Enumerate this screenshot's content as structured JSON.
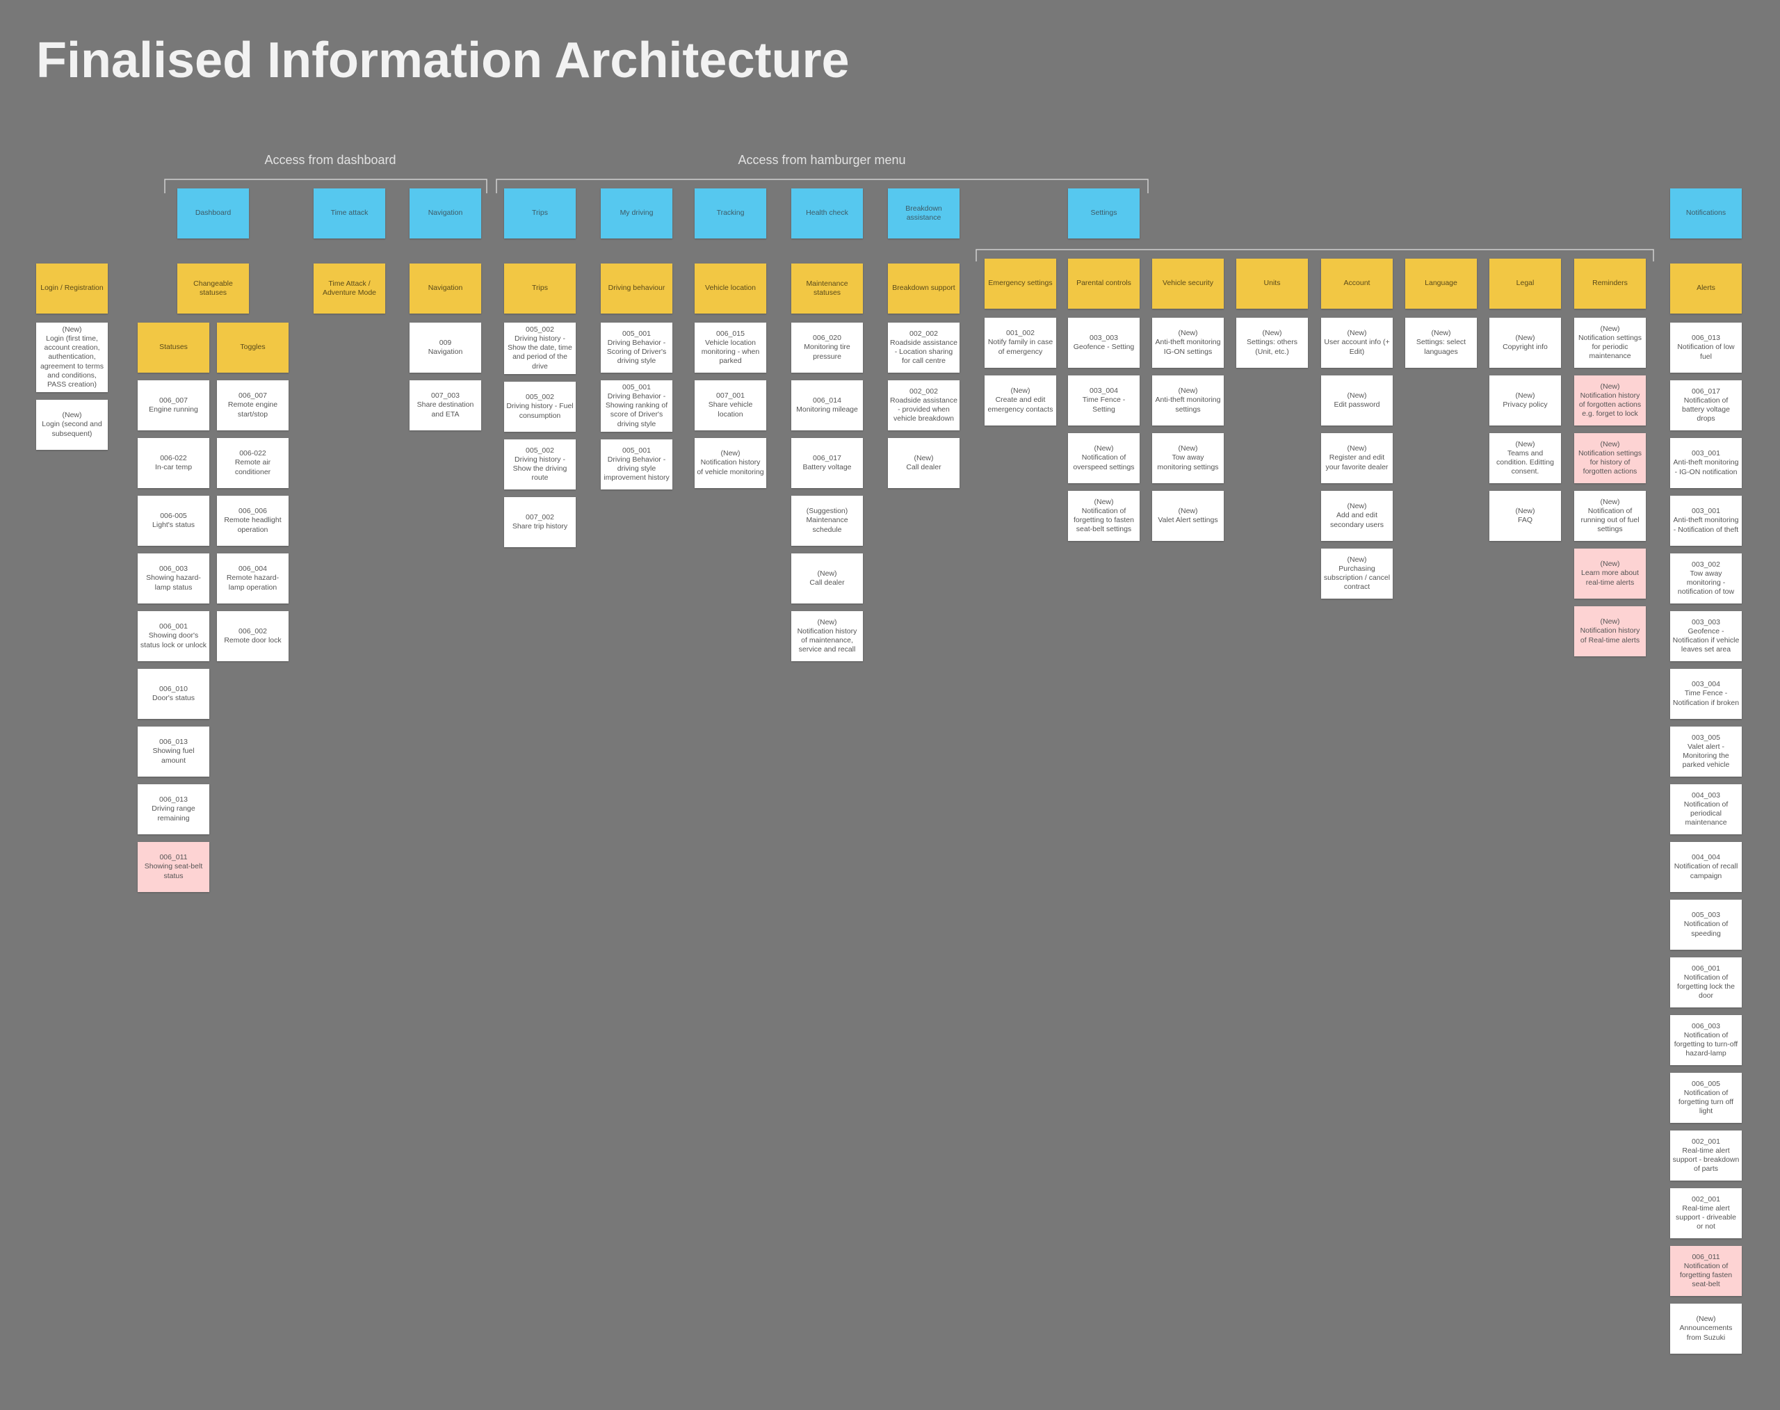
{
  "title": "Finalised Information Architecture",
  "colors": {
    "background": "#787878",
    "header": "#56c8ef",
    "section": "#f2c744"
  },
  "groups": [
    {
      "label": "Access from dashboard"
    },
    {
      "label": "Access from hamburger menu"
    }
  ],
  "headers": [
    "Dashboard",
    "Time attack",
    "Navigation",
    "Trips",
    "My driving",
    "Tracking",
    "Health check",
    "Breakdown assistance",
    "Settings",
    "Notifications"
  ],
  "columns": [
    {
      "section": "Login / Registration",
      "cards": [
        {
          "text": "(New)\nLogin (first time, account creation, authentication, agreement to terms and conditions, PASS creation)",
          "color": "#ffffff"
        },
        {
          "text": "(New)\nLogin (second and subsequent)",
          "color": "#ffffff"
        }
      ]
    },
    {
      "section": "Changeable statuses",
      "subsections": [
        {
          "section": "Statuses",
          "cards": [
            {
              "text": "006_007\nEngine running",
              "color": "#ffffff"
            },
            {
              "text": "006-022\nIn-car temp",
              "color": "#ffffff"
            },
            {
              "text": "006-005\nLight's status",
              "color": "#ffffff"
            },
            {
              "text": "006_003\nShowing hazard-lamp status",
              "color": "#ffffff"
            },
            {
              "text": "006_001\nShowing door's status lock or unlock",
              "color": "#ffffff"
            },
            {
              "text": "006_010\nDoor's status",
              "color": "#ffffff"
            },
            {
              "text": "006_013\nShowing fuel amount",
              "color": "#ffffff"
            },
            {
              "text": "006_013\nDriving range remaining",
              "color": "#ffffff"
            },
            {
              "text": "006_011\nShowing seat-belt status",
              "color": "#fdd3d3"
            }
          ]
        },
        {
          "section": "Toggles",
          "cards": [
            {
              "text": "006_007\nRemote engine start/stop",
              "color": "#ffffff"
            },
            {
              "text": "006-022\nRemote air conditioner",
              "color": "#ffffff"
            },
            {
              "text": "006_006\nRemote headlight operation",
              "color": "#ffffff"
            },
            {
              "text": "006_004\nRemote hazard-lamp operation",
              "color": "#ffffff"
            },
            {
              "text": "006_002\nRemote door lock",
              "color": "#ffffff"
            }
          ]
        }
      ]
    },
    {
      "section": "Time Attack / Adventure Mode",
      "cards": []
    },
    {
      "section": "Navigation",
      "cards": [
        {
          "text": "009\nNavigation",
          "color": "#ffffff"
        },
        {
          "text": "007_003\nShare destination and ETA",
          "color": "#ffffff"
        }
      ]
    },
    {
      "section": "Trips",
      "cards": [
        {
          "text": "005_002\nDriving history - Show the date, time and period of the drive",
          "color": "#ffffff"
        },
        {
          "text": "005_002\nDriving history - Fuel consumption",
          "color": "#ffffff"
        },
        {
          "text": "005_002\nDriving history - Show the driving route",
          "color": "#ffffff"
        },
        {
          "text": "007_002\nShare trip history",
          "color": "#ffffff"
        }
      ]
    },
    {
      "section": "Driving behaviour",
      "cards": [
        {
          "text": "005_001\nDriving Behavior - Scoring of Driver's driving style",
          "color": "#ffffff"
        },
        {
          "text": "005_001\nDriving Behavior - Showing ranking of score of Driver's driving style",
          "color": "#ffffff"
        },
        {
          "text": "005_001\nDriving Behavior - driving style improvement history",
          "color": "#ffffff"
        }
      ]
    },
    {
      "section": "Vehicle location",
      "cards": [
        {
          "text": "006_015\nVehicle location monitoring - when parked",
          "color": "#ffffff"
        },
        {
          "text": "007_001\nShare vehicle location",
          "color": "#ffffff"
        },
        {
          "text": "(New)\nNotification history of vehicle monitoring",
          "color": "#ffffff"
        }
      ]
    },
    {
      "section": "Maintenance statuses",
      "cards": [
        {
          "text": "006_020\nMonitoring tire pressure",
          "color": "#ffffff"
        },
        {
          "text": "006_014\nMonitoring mileage",
          "color": "#ffffff"
        },
        {
          "text": "006_017\nBattery voltage",
          "color": "#ffffff"
        },
        {
          "text": "(Suggestion)\nMaintenance schedule",
          "color": "#ffffff"
        },
        {
          "text": "(New)\nCall dealer",
          "color": "#ffffff"
        },
        {
          "text": "(New)\nNotification history of maintenance, service and recall",
          "color": "#ffffff"
        }
      ]
    },
    {
      "section": "Breakdown support",
      "cards": [
        {
          "text": "002_002\nRoadside assistance - Location sharing for call centre",
          "color": "#ffffff"
        },
        {
          "text": "002_002\nRoadside assistance - provided when vehicle breakdown",
          "color": "#ffffff"
        },
        {
          "text": "(New)\nCall dealer",
          "color": "#ffffff"
        }
      ]
    },
    {
      "section": "Emergency settings",
      "cards": [
        {
          "text": "001_002\nNotify family in case of emergency",
          "color": "#ffffff"
        },
        {
          "text": "(New)\nCreate and edit emergency contacts",
          "color": "#ffffff"
        }
      ]
    },
    {
      "section": "Parental controls",
      "cards": [
        {
          "text": "003_003\nGeofence - Setting",
          "color": "#ffffff"
        },
        {
          "text": "003_004\nTime Fence - Setting",
          "color": "#ffffff"
        },
        {
          "text": "(New)\nNotification of overspeed settings",
          "color": "#ffffff"
        },
        {
          "text": "(New)\nNotification of forgetting to fasten seat-belt settings",
          "color": "#ffffff"
        }
      ]
    },
    {
      "section": "Vehicle security",
      "cards": [
        {
          "text": "(New)\nAnti-theft monitoring IG-ON settings",
          "color": "#ffffff"
        },
        {
          "text": "(New)\nAnti-theft monitoring settings",
          "color": "#ffffff"
        },
        {
          "text": "(New)\nTow away monitoring settings",
          "color": "#ffffff"
        },
        {
          "text": "(New)\nValet Alert settings",
          "color": "#ffffff"
        }
      ]
    },
    {
      "section": "Units",
      "cards": [
        {
          "text": "(New)\nSettings: others (Unit, etc.)",
          "color": "#ffffff"
        }
      ]
    },
    {
      "section": "Account",
      "cards": [
        {
          "text": "(New)\nUser account info (+ Edit)",
          "color": "#ffffff"
        },
        {
          "text": "(New)\nEdit password",
          "color": "#ffffff"
        },
        {
          "text": "(New)\nRegister and edit your favorite dealer",
          "color": "#ffffff"
        },
        {
          "text": "(New)\nAdd  and edit secondary users",
          "color": "#ffffff"
        },
        {
          "text": "(New)\nPurchasing subscription / cancel contract",
          "color": "#ffffff"
        }
      ]
    },
    {
      "section": "Language",
      "cards": [
        {
          "text": "(New)\nSettings: select languages",
          "color": "#ffffff"
        }
      ]
    },
    {
      "section": "Legal",
      "cards": [
        {
          "text": "(New)\nCopyright info",
          "color": "#ffffff"
        },
        {
          "text": "(New)\nPrivacy policy",
          "color": "#ffffff"
        },
        {
          "text": "(New)\nTeams and condition. Editting consent.",
          "color": "#ffffff"
        },
        {
          "text": "(New)\nFAQ",
          "color": "#ffffff"
        }
      ]
    },
    {
      "section": "Reminders",
      "cards": [
        {
          "text": "(New)\nNotification settings for periodic maintenance",
          "color": "#ffffff"
        },
        {
          "text": "(New)\nNotification history of forgotten actions e.g. forget to lock",
          "color": "#fdd3d3"
        },
        {
          "text": "(New)\nNotification settings for history of forgotten actions",
          "color": "#fdd3d3"
        },
        {
          "text": "(New)\nNotification of running out of fuel settings",
          "color": "#ffffff"
        },
        {
          "text": "(New)\nLearn more about real-time alerts",
          "color": "#fdd3d3"
        },
        {
          "text": "(New)\nNotification history of Real-time alerts",
          "color": "#fdd3d3"
        }
      ]
    },
    {
      "section": "Alerts",
      "cards": [
        {
          "text": "006_013\nNotification of low fuel",
          "color": "#ffffff"
        },
        {
          "text": "006_017\nNotification of battery voltage drops",
          "color": "#ffffff"
        },
        {
          "text": "003_001\nAnti-theft monitoring - IG-ON notification",
          "color": "#ffffff"
        },
        {
          "text": "003_001\nAnti-theft monitoring - Notification of theft",
          "color": "#ffffff"
        },
        {
          "text": "003_002\nTow away monitoring - notification of tow",
          "color": "#ffffff"
        },
        {
          "text": "003_003\nGeofence - Notification if vehicle leaves set area",
          "color": "#ffffff"
        },
        {
          "text": "003_004\nTime Fence - Notification if broken",
          "color": "#ffffff"
        },
        {
          "text": "003_005\nValet alert - Monitoring the parked vehicle",
          "color": "#ffffff"
        },
        {
          "text": "004_003\nNotification of periodical maintenance",
          "color": "#ffffff"
        },
        {
          "text": "004_004\nNotification of recall campaign",
          "color": "#ffffff"
        },
        {
          "text": "005_003\nNotification of speeding",
          "color": "#ffffff"
        },
        {
          "text": "006_001\nNotification of forgetting lock the door",
          "color": "#ffffff"
        },
        {
          "text": "006_003\nNotification of forgetting to turn-off hazard-lamp",
          "color": "#ffffff"
        },
        {
          "text": "006_005\nNotification of forgetting turn off light",
          "color": "#ffffff"
        },
        {
          "text": "002_001\nReal-time alert support - breakdown of parts",
          "color": "#ffffff"
        },
        {
          "text": "002_001\nReal-time alert support - driveable or not",
          "color": "#ffffff"
        },
        {
          "text": "006_011\nNotification of forgetting fasten seat-belt",
          "color": "#fdd3d3"
        },
        {
          "text": "(New)\nAnnouncements from Suzuki",
          "color": "#ffffff"
        }
      ]
    }
  ]
}
